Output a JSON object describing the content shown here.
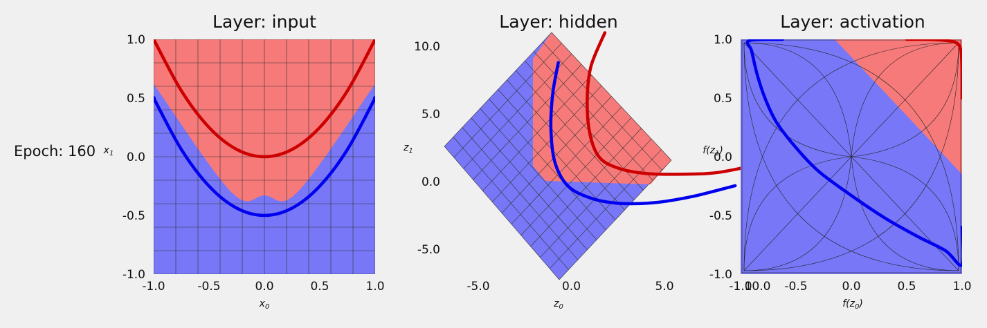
{
  "epoch_label": "Epoch: 160",
  "colors": {
    "class_red": "#cc0000",
    "class_blue": "#0000ee",
    "region_red": "#f77a7a",
    "region_blue": "#7777f7",
    "grid": "#333333",
    "background": "#f0f0f0"
  },
  "chart_data": [
    {
      "type": "line",
      "title": "Layer: input",
      "xlabel": "x",
      "xlabel_sub": "0",
      "ylabel": "x",
      "ylabel_sub": "1",
      "xlim": [
        -1.0,
        1.0
      ],
      "ylim": [
        -1.0,
        1.0
      ],
      "xticks": [
        "-1.0",
        "-0.5",
        "0.0",
        "0.5",
        "1.0"
      ],
      "yticks": [
        "-1.0",
        "-0.5",
        "0.0",
        "0.5",
        "1.0"
      ],
      "grid": true,
      "series": [
        {
          "color": "red",
          "x": [
            -1.0,
            -0.75,
            -0.5,
            -0.25,
            0.0,
            0.25,
            0.5,
            0.75,
            1.0
          ],
          "y": [
            1.0,
            0.5625,
            0.25,
            0.0625,
            0.0,
            0.0625,
            0.25,
            0.5625,
            1.0
          ]
        },
        {
          "color": "blue",
          "x": [
            -1.0,
            -0.75,
            -0.5,
            -0.25,
            0.0,
            0.25,
            0.5,
            0.75,
            1.0
          ],
          "y": [
            0.5,
            0.0625,
            -0.25,
            -0.4375,
            -0.5,
            -0.4375,
            -0.25,
            0.0625,
            0.5
          ]
        }
      ],
      "decision_boundary": {
        "x": [
          -1.0,
          -0.3,
          0.0,
          0.3,
          1.0
        ],
        "y": [
          0.62,
          -0.3,
          -0.33,
          -0.3,
          0.62
        ]
      }
    },
    {
      "type": "line",
      "title": "Layer: hidden",
      "xlabel": "z",
      "xlabel_sub": "0",
      "ylabel": "z",
      "ylabel_sub": "1",
      "xlim": [
        -7.0,
        11.0
      ],
      "ylim": [
        -7.5,
        11.5
      ],
      "xticks": [
        "-5.0",
        "0.0",
        "5.0",
        "10.0"
      ],
      "yticks": [
        "-5.0",
        "0.0",
        "5.0",
        "10.0"
      ],
      "grid": false,
      "series": [
        {
          "color": "red",
          "x": [
            1.8,
            1.05,
            0.85,
            1.0,
            1.5,
            2.5,
            4.0,
            6.0,
            8.0,
            10.8
          ],
          "y": [
            11.0,
            8.5,
            6.0,
            3.5,
            1.8,
            1.0,
            0.6,
            0.55,
            0.7,
            1.5
          ]
        },
        {
          "color": "blue",
          "x": [
            -0.7,
            -1.0,
            -1.1,
            -0.9,
            -0.2,
            1.0,
            2.5,
            4.5,
            6.5,
            8.8
          ],
          "y": [
            8.8,
            6.5,
            4.0,
            1.5,
            -0.3,
            -1.2,
            -1.6,
            -1.55,
            -1.1,
            -0.3
          ]
        }
      ]
    },
    {
      "type": "line",
      "title": "Layer: activation",
      "xlabel": "f(z",
      "xlabel_sub": "0",
      "xlabel_tail": ")",
      "ylabel": "f(z",
      "ylabel_sub": "1",
      "ylabel_tail": ")",
      "xlim": [
        -1.0,
        1.0
      ],
      "ylim": [
        -1.0,
        1.0
      ],
      "xticks": [
        "-1.0",
        "-0.5",
        "0.0",
        "0.5",
        "1.0"
      ],
      "yticks": [
        "-1.0",
        "-0.5",
        "0.0",
        "0.5",
        "1.0"
      ],
      "grid": false,
      "series": [
        {
          "color": "red",
          "x": [
            0.5,
            0.7,
            0.85,
            0.95,
            0.99,
            1.0,
            1.0
          ],
          "y": [
            1.0,
            1.0,
            0.99,
            0.97,
            0.9,
            0.7,
            0.5
          ]
        },
        {
          "color": "blue",
          "x": [
            -0.62,
            -0.92,
            -0.9,
            -0.85,
            -0.78,
            -0.68,
            -0.52,
            -0.3,
            0.0,
            0.3,
            0.6,
            0.85,
            1.0,
            1.0
          ],
          "y": [
            1.0,
            0.99,
            0.9,
            0.7,
            0.5,
            0.3,
            0.1,
            -0.12,
            -0.33,
            -0.52,
            -0.68,
            -0.8,
            -0.92,
            -0.6
          ]
        }
      ],
      "decision_boundary": {
        "x": [
          -0.15,
          1.0
        ],
        "y": [
          1.0,
          -0.15
        ]
      }
    }
  ]
}
